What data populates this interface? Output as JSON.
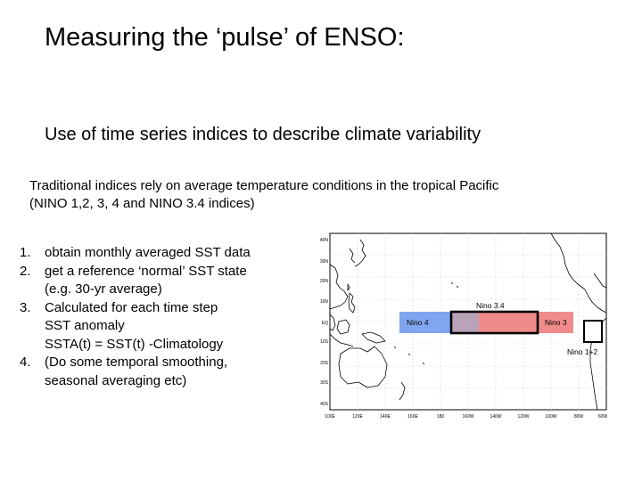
{
  "slide": {
    "title": "Measuring the ‘pulse’ of ENSO:",
    "subtitle": "Use of time series indices to describe climate variability",
    "intro": [
      "Traditional indices rely on average temperature conditions in the tropical Pacific",
      "(NINO 1,2, 3, 4 and NINO 3.4 indices)"
    ],
    "steps": [
      {
        "num": "1.",
        "lines": [
          "obtain monthly averaged SST data"
        ]
      },
      {
        "num": "2.",
        "lines": [
          "get a reference ‘normal’ SST state",
          "(e.g. 30-yr average)"
        ]
      },
      {
        "num": "3.",
        "lines": [
          "Calculated for each time step",
          "SST anomaly",
          "SSTA(t) =  SST(t) -Climatology"
        ]
      },
      {
        "num": "4.",
        "lines": [
          "(Do some temporal  smoothing,",
          "seasonal averaging etc)"
        ]
      }
    ]
  },
  "map": {
    "lat_labels": [
      "40N",
      "30N",
      "20N",
      "10N",
      "EQ",
      "10S",
      "20S",
      "30S",
      "40S"
    ],
    "lon_labels": [
      "100E",
      "120E",
      "140E",
      "160E",
      "180",
      "160W",
      "140W",
      "120W",
      "100W",
      "80W",
      "60W"
    ],
    "regions": {
      "nino4_label": "Nino 4",
      "nino3_label": "Nino 3",
      "nino34_label": "Nino 3.4",
      "nino12_label": "Nino 1+2"
    },
    "colors": {
      "nino4": "#7fa6ee",
      "nino3": "#f08b8b",
      "overlap": "#b8a3b8",
      "land": "#000000",
      "grid": "#d8d8d8"
    }
  }
}
